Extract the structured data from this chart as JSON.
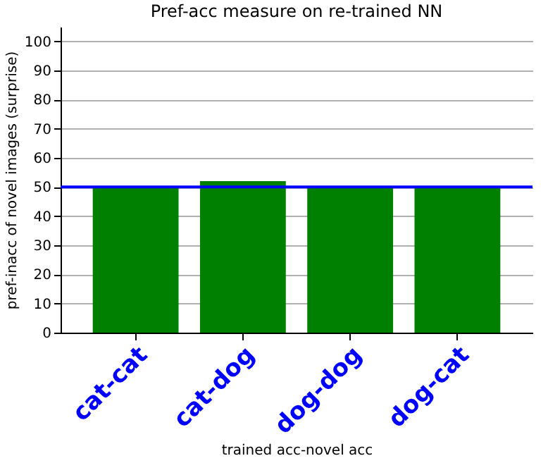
{
  "chart_data": {
    "type": "bar",
    "title": "Pref-acc measure on re-trained NN",
    "xlabel": "trained acc-novel acc",
    "ylabel": "pref-inacc of novel images (surprise)",
    "categories": [
      "cat-cat",
      "cat-dog",
      "dog-dog",
      "dog-cat"
    ],
    "values": [
      50,
      52,
      50,
      50
    ],
    "color": "#008000",
    "ylim": [
      0,
      105
    ],
    "yticks": [
      0,
      10,
      20,
      30,
      40,
      50,
      60,
      70,
      80,
      90,
      100
    ],
    "grid": "y",
    "ref_lines": [
      {
        "axis": "y",
        "value": 50,
        "color": "#0000ff"
      }
    ]
  }
}
